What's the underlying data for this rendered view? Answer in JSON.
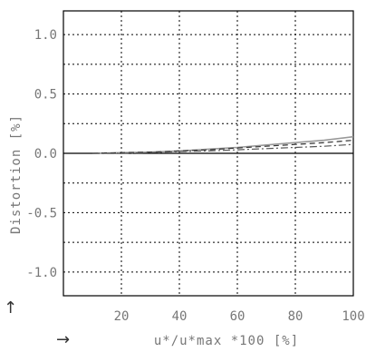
{
  "chart_data": {
    "type": "line",
    "xlabel": "u*/u*max *100 [%]",
    "ylabel": "Distortion [%]",
    "xlim": [
      0,
      100
    ],
    "ylim": [
      -1.2,
      1.2
    ],
    "x_ticks": [
      "20",
      "40",
      "60",
      "80",
      "100"
    ],
    "y_ticks": [
      "1.0",
      "0.5",
      "0.0",
      "-0.5",
      "-1.0"
    ],
    "grid": true,
    "series": [
      {
        "style": "solid",
        "x": [
          10,
          20,
          30,
          40,
          50,
          60,
          70,
          80,
          90,
          100
        ],
        "y": [
          0.0,
          0.005,
          0.01,
          0.02,
          0.035,
          0.05,
          0.07,
          0.09,
          0.11,
          0.14
        ]
      },
      {
        "style": "dashed",
        "x": [
          10,
          20,
          30,
          40,
          50,
          60,
          70,
          80,
          90,
          100
        ],
        "y": [
          0.0,
          0.005,
          0.01,
          0.02,
          0.03,
          0.045,
          0.06,
          0.075,
          0.09,
          0.11
        ]
      },
      {
        "style": "dashdot",
        "x": [
          10,
          20,
          30,
          40,
          50,
          60,
          70,
          80,
          90,
          100
        ],
        "y": [
          0.0,
          0.0,
          0.005,
          0.015,
          0.02,
          0.03,
          0.04,
          0.05,
          0.06,
          0.075
        ]
      }
    ]
  },
  "arrows": {
    "x_arrow": "→",
    "y_arrow": "↑"
  }
}
